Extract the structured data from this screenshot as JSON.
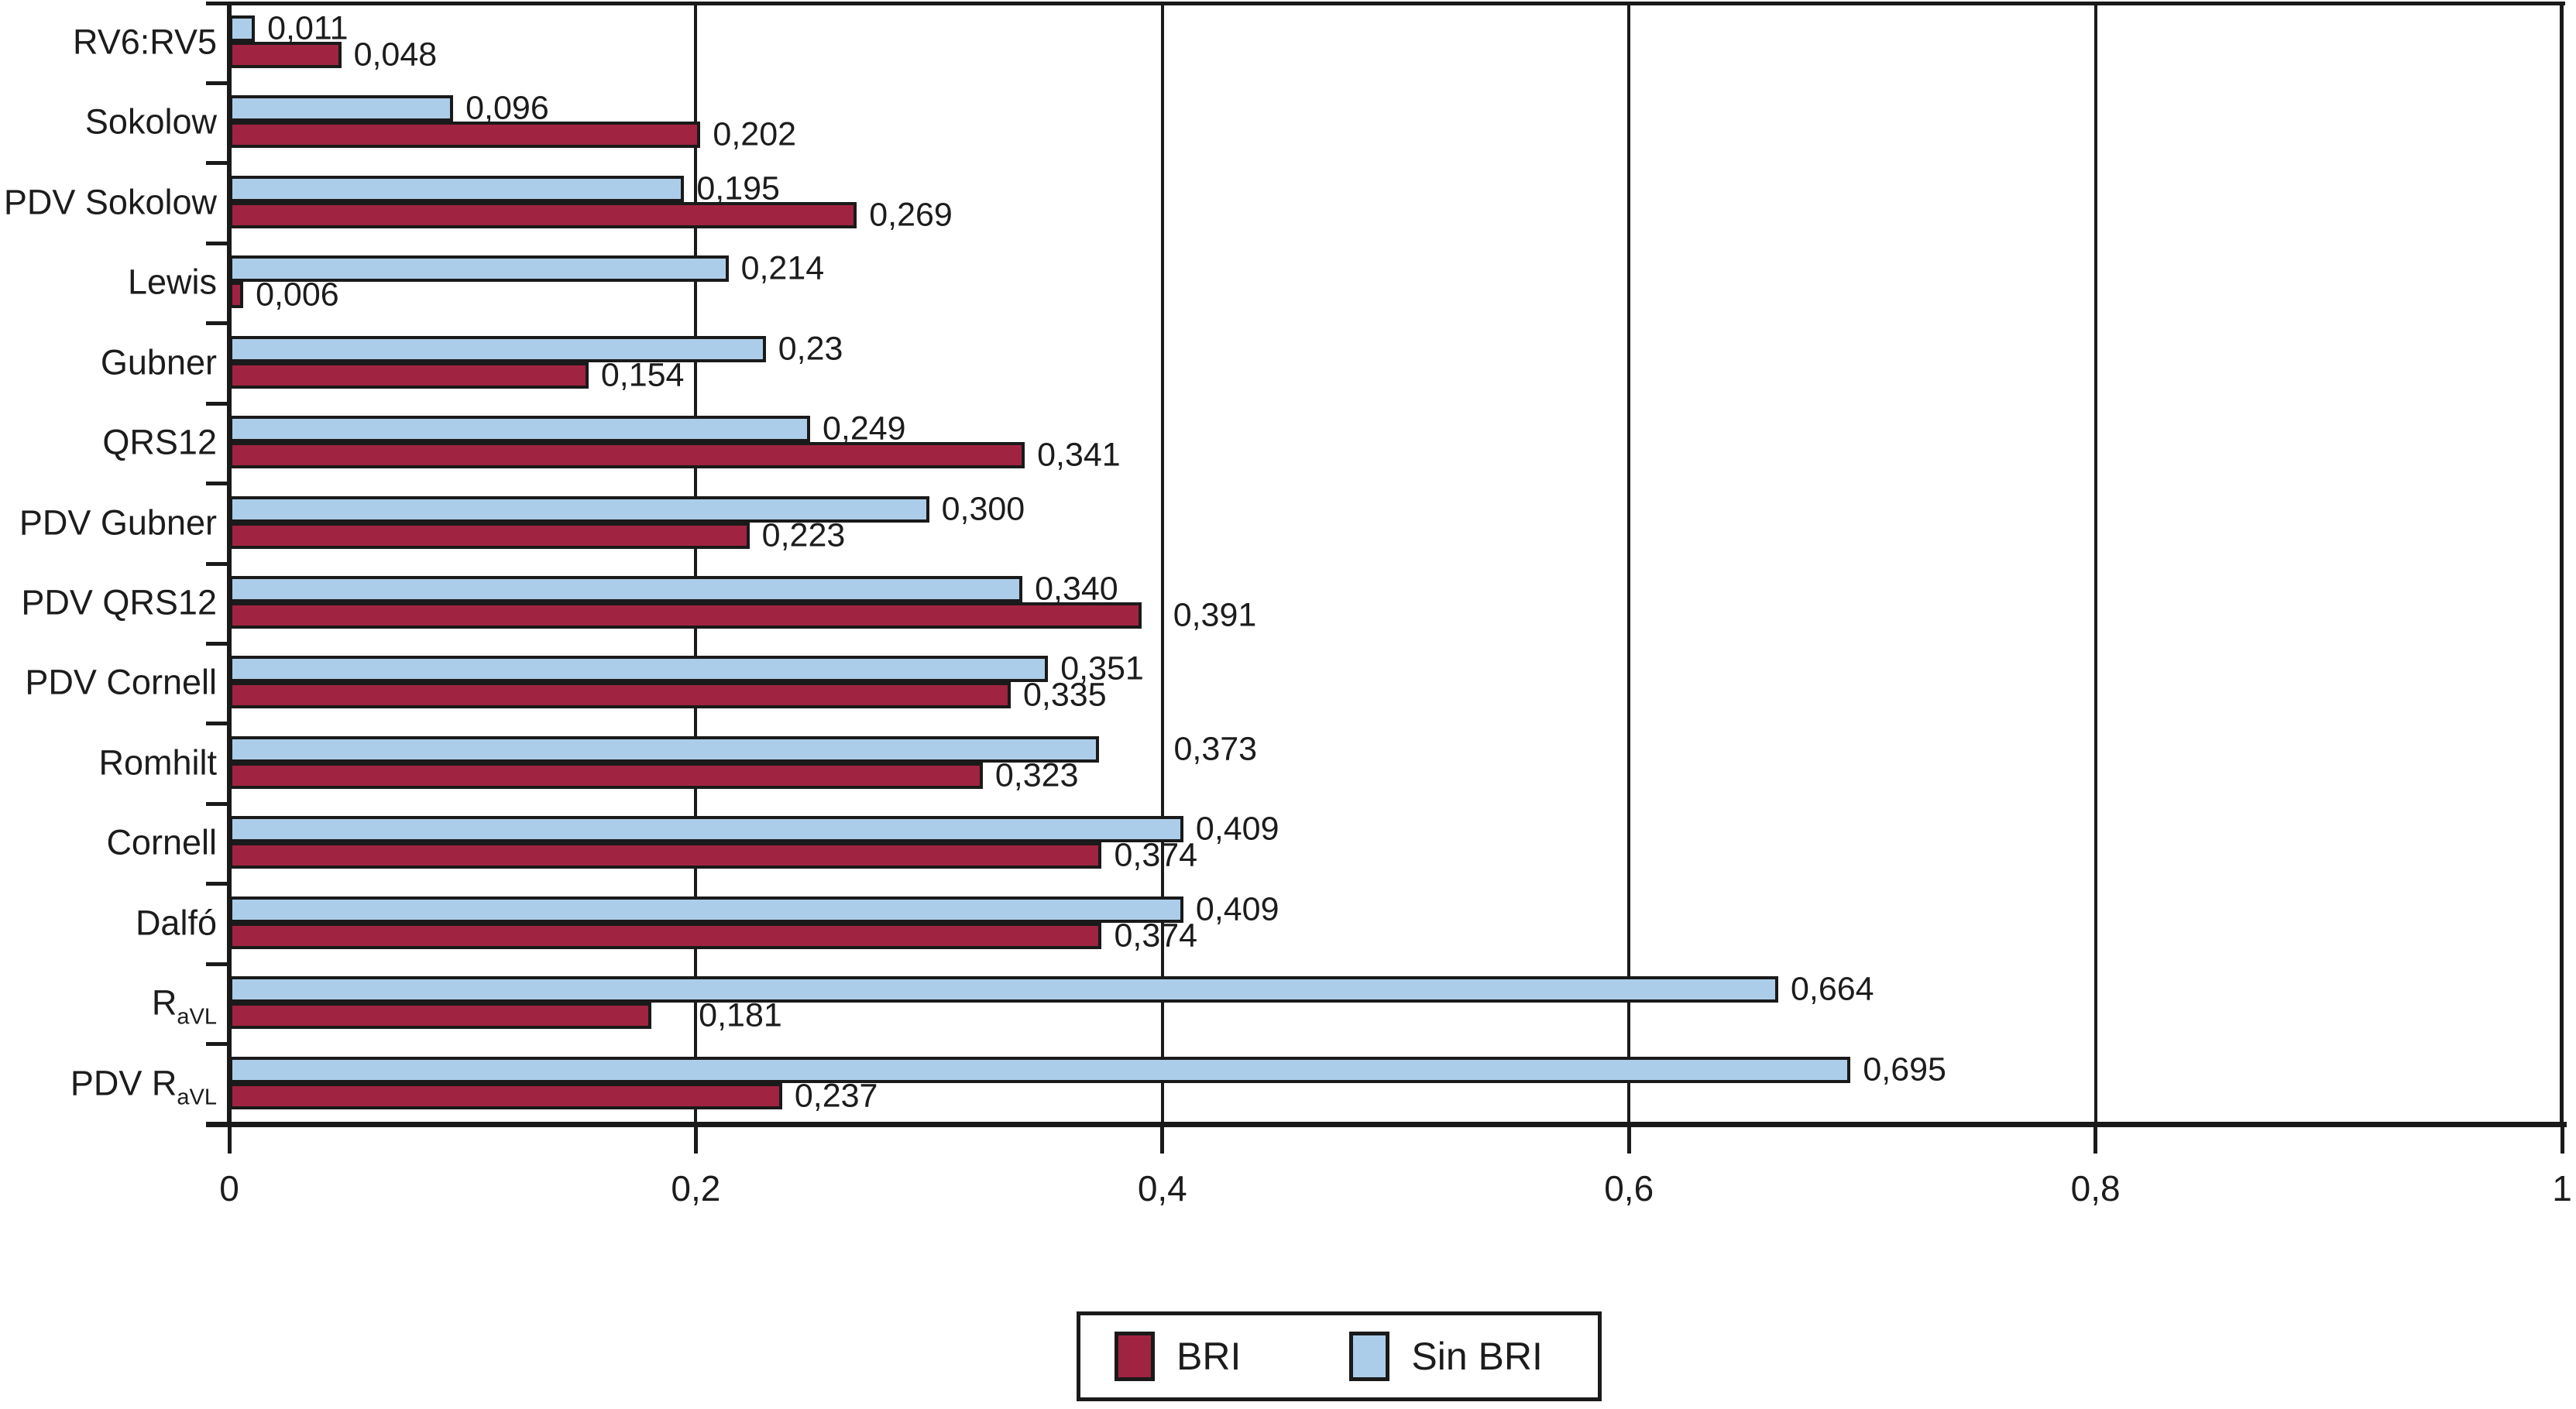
{
  "chart_data": {
    "type": "bar",
    "orientation": "horizontal",
    "title": "",
    "xlabel": "",
    "ylabel": "",
    "xlim": [
      0,
      1
    ],
    "decimal_separator": ",",
    "grid": "vertical-gridlines",
    "legend_position": "bottom-center",
    "x_ticks": [
      {
        "label": "0",
        "value": 0
      },
      {
        "label": "0,2",
        "value": 0.2
      },
      {
        "label": "0,4",
        "value": 0.4
      },
      {
        "label": "0,6",
        "value": 0.6
      },
      {
        "label": "0,8",
        "value": 0.8
      },
      {
        "label": "1",
        "value": 1
      }
    ],
    "gridlines_at": [
      0.2,
      0.4,
      0.6,
      0.8
    ],
    "series": [
      {
        "name": "BRI",
        "key": "bri",
        "color": "#A02441"
      },
      {
        "name": "Sin BRI",
        "key": "sin_bri",
        "color": "#ACCDE9"
      }
    ],
    "bar_border_color": "#1A1A1A",
    "categories": [
      {
        "base": "RV6:RV5",
        "sub": "",
        "sin_bri": {
          "value": 0.011,
          "label": "0,011"
        },
        "bri": {
          "value": 0.048,
          "label": "0,048"
        }
      },
      {
        "base": "Sokolow",
        "sub": "",
        "sin_bri": {
          "value": 0.096,
          "label": "0,096"
        },
        "bri": {
          "value": 0.202,
          "label": "0,202"
        }
      },
      {
        "base": "PDV Sokolow",
        "sub": "",
        "sin_bri": {
          "value": 0.195,
          "label": "0,195"
        },
        "bri": {
          "value": 0.269,
          "label": "0,269"
        }
      },
      {
        "base": "Lewis",
        "sub": "",
        "sin_bri": {
          "value": 0.214,
          "label": "0,214"
        },
        "bri": {
          "value": 0.006,
          "label": "0,006"
        }
      },
      {
        "base": "Gubner",
        "sub": "",
        "sin_bri": {
          "value": 0.23,
          "label": "0,23"
        },
        "bri": {
          "value": 0.154,
          "label": "0,154"
        }
      },
      {
        "base": "QRS12",
        "sub": "",
        "sin_bri": {
          "value": 0.249,
          "label": "0,249"
        },
        "bri": {
          "value": 0.341,
          "label": "0,341"
        }
      },
      {
        "base": "PDV Gubner",
        "sub": "",
        "sin_bri": {
          "value": 0.3,
          "label": "0,300"
        },
        "bri": {
          "value": 0.223,
          "label": "0,223"
        }
      },
      {
        "base": "PDV QRS12",
        "sub": "",
        "sin_bri": {
          "value": 0.34,
          "label": "0,340"
        },
        "bri": {
          "value": 0.391,
          "label": "0,391",
          "nudge": 25
        }
      },
      {
        "base": "PDV Cornell",
        "sub": "",
        "sin_bri": {
          "value": 0.351,
          "label": "0,351"
        },
        "bri": {
          "value": 0.335,
          "label": "0,335"
        }
      },
      {
        "base": "Romhilt",
        "sub": "",
        "sin_bri": {
          "value": 0.373,
          "label": "0,373",
          "nudge": 80
        },
        "bri": {
          "value": 0.323,
          "label": "0,323"
        }
      },
      {
        "base": "Cornell",
        "sub": "",
        "sin_bri": {
          "value": 0.409,
          "label": "0,409"
        },
        "bri": {
          "value": 0.374,
          "label": "0,374"
        }
      },
      {
        "base": "Dalfó",
        "sub": "",
        "sin_bri": {
          "value": 0.409,
          "label": "0,409"
        },
        "bri": {
          "value": 0.374,
          "label": "0,374"
        }
      },
      {
        "base": "R",
        "sub": "aVL",
        "sin_bri": {
          "value": 0.664,
          "label": "0,664"
        },
        "bri": {
          "value": 0.181,
          "label": "0,181",
          "nudge": 45
        }
      },
      {
        "base": "PDV R",
        "sub": "aVL",
        "sin_bri": {
          "value": 0.695,
          "label": "0,695"
        },
        "bri": {
          "value": 0.237,
          "label": "0,237"
        }
      }
    ]
  },
  "legend": {
    "items": [
      {
        "label": "BRI",
        "color": "#A02441"
      },
      {
        "label": "Sin BRI",
        "color": "#ACCDE9"
      }
    ]
  }
}
